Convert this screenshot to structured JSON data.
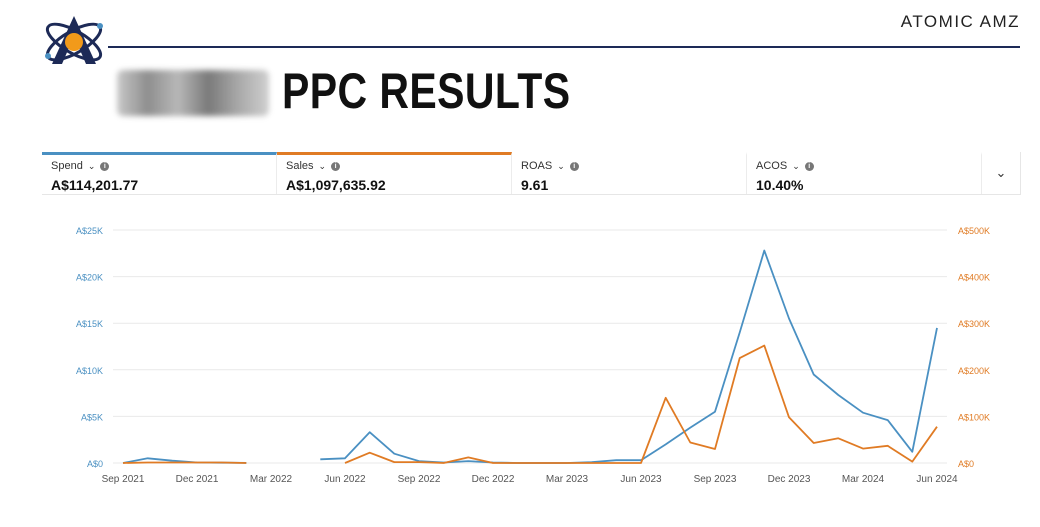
{
  "header": {
    "brand": "ATOMIC AMZ",
    "title": "PPC RESULTS"
  },
  "metrics": [
    {
      "label": "Spend",
      "value": "A$114,201.77",
      "accent": "#4a90c2"
    },
    {
      "label": "Sales",
      "value": "A$1,097,635.92",
      "accent": "#e07b24"
    },
    {
      "label": "ROAS",
      "value": "9.61",
      "accent": ""
    },
    {
      "label": "ACOS",
      "value": "10.40%",
      "accent": ""
    }
  ],
  "colors": {
    "spend": "#4a90c2",
    "sales": "#e07b24",
    "grid": "#e9e9e9"
  },
  "chart_data": {
    "type": "line",
    "x_tick_labels": [
      "Sep 2021",
      "Dec 2021",
      "Mar 2022",
      "Jun 2022",
      "Sep 2022",
      "Dec 2022",
      "Mar 2023",
      "Jun 2023",
      "Sep 2023",
      "Dec 2023",
      "Mar 2024",
      "Jun 2024"
    ],
    "y_left": {
      "ticks": [
        "A$0",
        "A$5K",
        "A$10K",
        "A$15K",
        "A$20K",
        "A$25K"
      ],
      "ylim": [
        0,
        25000
      ]
    },
    "y_right": {
      "ticks": [
        "A$0",
        "A$100K",
        "A$200K",
        "A$300K",
        "A$400K",
        "A$500K"
      ],
      "ylim": [
        0,
        500000
      ]
    },
    "grid": true,
    "series": [
      {
        "name": "Spend",
        "axis": "left",
        "points": [
          [
            "2021-09",
            0
          ],
          [
            "2021-10",
            500
          ],
          [
            "2021-11",
            250
          ],
          [
            "2021-12",
            50
          ],
          [
            "2022-01",
            30
          ],
          [
            "2022-02",
            10
          ],
          [
            "2022-05",
            400
          ],
          [
            "2022-06",
            500
          ],
          [
            "2022-07",
            3300
          ],
          [
            "2022-08",
            1000
          ],
          [
            "2022-09",
            200
          ],
          [
            "2022-10",
            50
          ],
          [
            "2022-11",
            200
          ],
          [
            "2022-12",
            50
          ],
          [
            "2023-01",
            0
          ],
          [
            "2023-02",
            0
          ],
          [
            "2023-03",
            0
          ],
          [
            "2023-04",
            100
          ],
          [
            "2023-05",
            300
          ],
          [
            "2023-06",
            300
          ],
          [
            "2023-07",
            2000
          ],
          [
            "2023-08",
            3800
          ],
          [
            "2023-09",
            5500
          ],
          [
            "2023-10",
            14000
          ],
          [
            "2023-11",
            22800
          ],
          [
            "2023-12",
            15500
          ],
          [
            "2024-01",
            9500
          ],
          [
            "2024-02",
            7300
          ],
          [
            "2024-03",
            5400
          ],
          [
            "2024-04",
            4600
          ],
          [
            "2024-05",
            1200
          ],
          [
            "2024-06",
            14500
          ]
        ]
      },
      {
        "name": "Sales",
        "axis": "right",
        "points": [
          [
            "2021-09",
            0
          ],
          [
            "2021-10",
            1000
          ],
          [
            "2021-11",
            1000
          ],
          [
            "2021-12",
            1000
          ],
          [
            "2022-01",
            1000
          ],
          [
            "2022-02",
            0
          ],
          [
            "2022-06",
            0
          ],
          [
            "2022-07",
            22000
          ],
          [
            "2022-08",
            2000
          ],
          [
            "2022-09",
            2000
          ],
          [
            "2022-10",
            0
          ],
          [
            "2022-11",
            12000
          ],
          [
            "2022-12",
            0
          ],
          [
            "2023-01",
            0
          ],
          [
            "2023-02",
            0
          ],
          [
            "2023-03",
            0
          ],
          [
            "2023-04",
            0
          ],
          [
            "2023-05",
            0
          ],
          [
            "2023-06",
            0
          ],
          [
            "2023-07",
            140000
          ],
          [
            "2023-08",
            44000
          ],
          [
            "2023-09",
            30000
          ],
          [
            "2023-10",
            225000
          ],
          [
            "2023-11",
            252000
          ],
          [
            "2023-12",
            98000
          ],
          [
            "2024-01",
            43000
          ],
          [
            "2024-02",
            53000
          ],
          [
            "2024-03",
            31000
          ],
          [
            "2024-04",
            37000
          ],
          [
            "2024-05",
            3000
          ],
          [
            "2024-06",
            78000
          ]
        ]
      }
    ]
  }
}
